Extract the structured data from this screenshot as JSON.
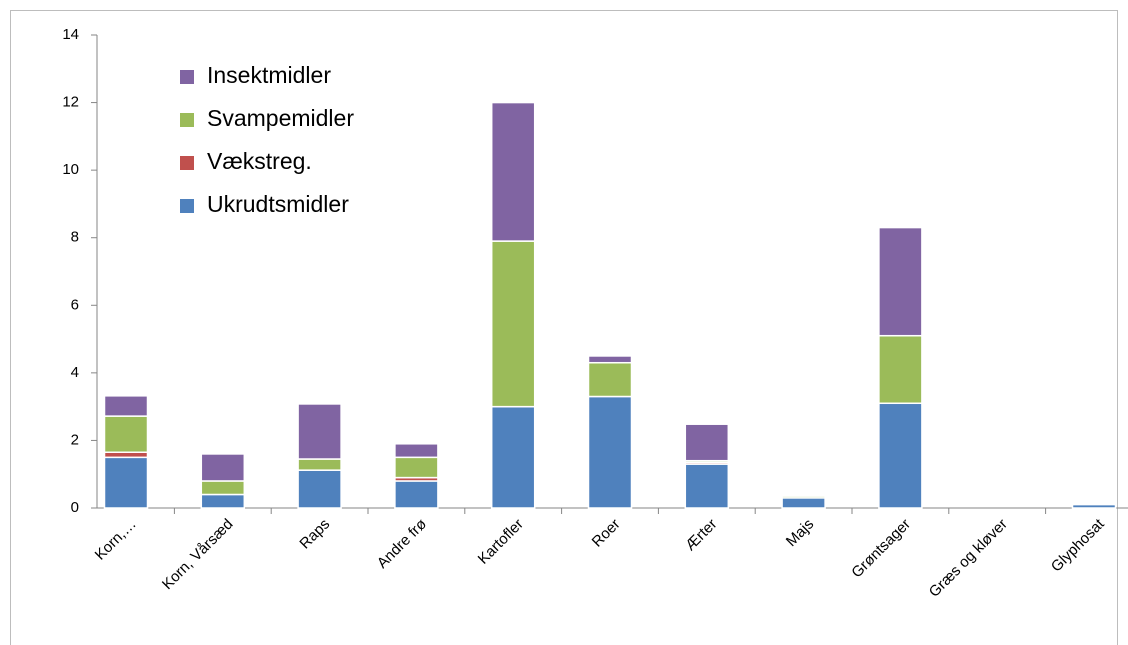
{
  "chart_data": {
    "type": "stacked-bar",
    "categories": [
      "Korn,…",
      "Korn, Vårsæd",
      "Raps",
      "Andre frø",
      "Kartofler",
      "Roer",
      "Ærter",
      "Majs",
      "Grøntsager",
      "Græs og kløver",
      "Glyphosat"
    ],
    "series": [
      {
        "name": "Ukrudtsmidler",
        "color": "#4f81bd",
        "values": [
          1.5,
          0.4,
          1.12,
          0.8,
          3.0,
          3.3,
          1.3,
          0.3,
          3.1,
          0,
          0.1
        ]
      },
      {
        "name": "Vækstreg.",
        "color": "#c0504d",
        "values": [
          0.15,
          0,
          0,
          0.1,
          0,
          0,
          0.05,
          0,
          0,
          0,
          0
        ]
      },
      {
        "name": "Svampemidler",
        "color": "#9bbb59",
        "values": [
          1.07,
          0.4,
          0.33,
          0.6,
          4.9,
          1.0,
          0.05,
          0.05,
          2.0,
          0,
          0
        ]
      },
      {
        "name": "Insektmidler",
        "color": "#8064a2",
        "values": [
          0.6,
          0.8,
          1.63,
          0.4,
          4.1,
          0.2,
          1.08,
          0,
          3.2,
          0,
          0
        ]
      }
    ],
    "ylim": [
      0,
      14
    ],
    "yticks": [
      0,
      2,
      4,
      6,
      8,
      10,
      12,
      14
    ]
  }
}
